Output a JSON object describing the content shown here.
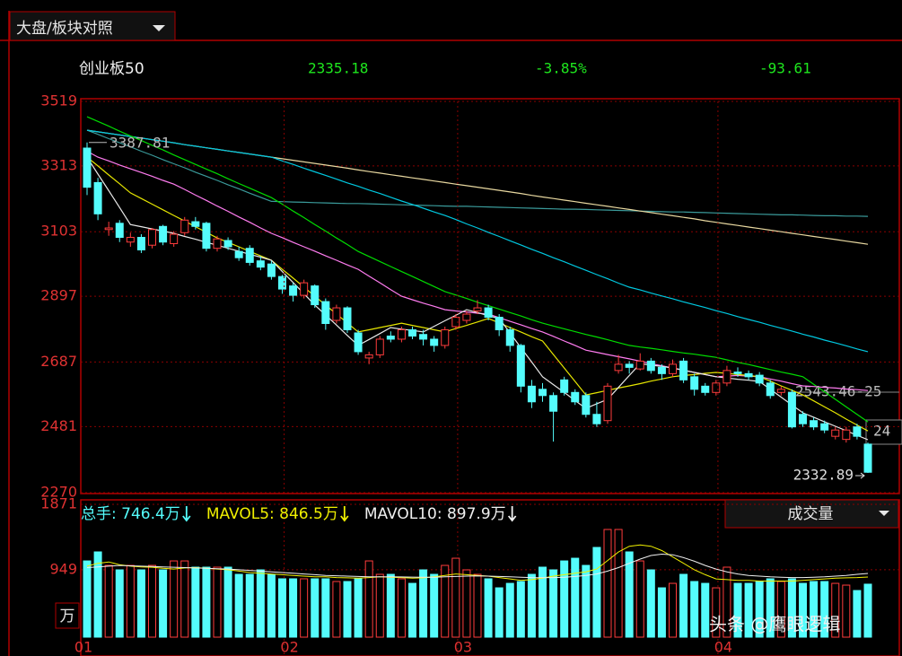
{
  "ui": {
    "selector": "大盘/板块对照",
    "index_name": "创业板50",
    "price": "2335.18",
    "change_pct": "-3.85%",
    "change": "-93.61",
    "watermark": "头条 @鹰眼逻辑"
  },
  "chart_data": [
    {
      "type": "candlestick",
      "ylim": [
        2270,
        3519
      ],
      "yticks": [
        3519,
        3313,
        3103,
        2897,
        2687,
        2481,
        2270
      ],
      "grid": true,
      "up_color": "#ff3c3c",
      "down_color": "#54fcfc",
      "open": [
        3370,
        3260,
        3110,
        3130,
        3070,
        3085,
        3060,
        3120,
        3065,
        3100,
        3135,
        3130,
        3050,
        3075,
        3040,
        3050,
        3010,
        3000,
        2960,
        2930,
        2900,
        2930,
        2880,
        2820,
        2860,
        2780,
        2700,
        2710,
        2770,
        2760,
        2790,
        2775,
        2760,
        2740,
        2800,
        2820,
        2850,
        2860,
        2830,
        2790,
        2740,
        2610,
        2600,
        2580,
        2630,
        2590,
        2580,
        2520,
        2500,
        2660,
        2680,
        2665,
        2690,
        2670,
        2650,
        2690,
        2640,
        2610,
        2590,
        2620,
        2655,
        2650,
        2645,
        2620,
        2590,
        2590,
        2520,
        2500,
        2490,
        2450,
        2440,
        2480,
        2425
      ],
      "high": [
        3387.81,
        3275,
        3135,
        3140,
        3100,
        3095,
        3115,
        3125,
        3105,
        3150,
        3150,
        3135,
        3090,
        3085,
        3055,
        3060,
        3025,
        3010,
        2965,
        2940,
        2950,
        2935,
        2890,
        2870,
        2865,
        2790,
        2720,
        2770,
        2785,
        2800,
        2800,
        2790,
        2770,
        2800,
        2840,
        2850,
        2885,
        2870,
        2840,
        2800,
        2745,
        2630,
        2620,
        2590,
        2640,
        2600,
        2590,
        2560,
        2620,
        2710,
        2690,
        2715,
        2700,
        2680,
        2695,
        2700,
        2650,
        2620,
        2630,
        2675,
        2670,
        2660,
        2655,
        2630,
        2610,
        2600,
        2530,
        2510,
        2500,
        2480,
        2480,
        2490,
        2430
      ],
      "low": [
        3220,
        3140,
        3090,
        3070,
        3055,
        3035,
        3050,
        3060,
        3055,
        3090,
        3110,
        3040,
        3040,
        3045,
        3010,
        2995,
        2980,
        2950,
        2905,
        2880,
        2890,
        2860,
        2790,
        2810,
        2780,
        2710,
        2680,
        2700,
        2750,
        2750,
        2760,
        2740,
        2720,
        2730,
        2790,
        2810,
        2840,
        2820,
        2770,
        2720,
        2590,
        2540,
        2560,
        2433,
        2580,
        2550,
        2510,
        2480,
        2490,
        2650,
        2650,
        2660,
        2650,
        2630,
        2640,
        2620,
        2580,
        2580,
        2580,
        2610,
        2640,
        2630,
        2610,
        2570,
        2580,
        2475,
        2480,
        2470,
        2460,
        2440,
        2430,
        2440,
        2332.89
      ],
      "close": [
        3245,
        3160,
        3115,
        3085,
        3085,
        3045,
        3110,
        3070,
        3095,
        3140,
        3120,
        3050,
        3080,
        3055,
        3020,
        3005,
        2990,
        2960,
        2920,
        2900,
        2940,
        2870,
        2810,
        2860,
        2790,
        2720,
        2710,
        2760,
        2760,
        2790,
        2770,
        2760,
        2740,
        2790,
        2830,
        2840,
        2860,
        2830,
        2790,
        2740,
        2610,
        2560,
        2580,
        2530,
        2590,
        2560,
        2520,
        2490,
        2610,
        2680,
        2670,
        2690,
        2660,
        2650,
        2680,
        2630,
        2600,
        2590,
        2620,
        2660,
        2650,
        2640,
        2620,
        2580,
        2600,
        2480,
        2490,
        2480,
        2470,
        2470,
        2470,
        2450,
        2335.18
      ],
      "lines": [
        {
          "color": "#3a9a9a",
          "values": [
            3427,
            3414,
            3400,
            3387,
            3374,
            3360,
            3347,
            3333,
            3320,
            3307,
            3293,
            3280,
            3267,
            3253,
            3240,
            3226,
            3213,
            3200,
            3199,
            3198,
            3197,
            3196,
            3195,
            3194,
            3193,
            3193,
            3192,
            3191,
            3190,
            3189,
            3188,
            3187,
            3186,
            3185,
            3184,
            3184,
            3183,
            3182,
            3181,
            3180,
            3179,
            3178,
            3177,
            3176,
            3175,
            3175,
            3174,
            3173,
            3172,
            3171,
            3170,
            3169,
            3168,
            3167,
            3166,
            3166,
            3165,
            3164,
            3163,
            3162,
            3161,
            3160,
            3159,
            3158,
            3157,
            3157,
            3156,
            3155,
            3154,
            3154,
            3153,
            3153,
            3152
          ]
        },
        {
          "color": "#e8d8a0",
          "values": [
            3427,
            3422,
            3417,
            3412,
            3407,
            3402,
            3397,
            3392,
            3387,
            3381,
            3376,
            3371,
            3366,
            3361,
            3356,
            3351,
            3346,
            3341,
            3336,
            3331,
            3326,
            3321,
            3316,
            3311,
            3306,
            3300,
            3295,
            3290,
            3285,
            3280,
            3275,
            3270,
            3265,
            3260,
            3255,
            3250,
            3245,
            3240,
            3235,
            3230,
            3225,
            3219,
            3214,
            3209,
            3204,
            3199,
            3194,
            3189,
            3184,
            3179,
            3174,
            3169,
            3164,
            3159,
            3154,
            3149,
            3144,
            3138,
            3133,
            3128,
            3123,
            3118,
            3113,
            3108,
            3103,
            3098,
            3093,
            3088,
            3083,
            3078,
            3073,
            3068,
            3063
          ]
        },
        {
          "color": "#00c8e0",
          "values": [
            3427,
            3422,
            3417,
            3412,
            3407,
            3402,
            3397,
            3392,
            3387,
            3381,
            3376,
            3371,
            3366,
            3361,
            3356,
            3351,
            3346,
            3341,
            3329,
            3318,
            3306,
            3294,
            3283,
            3271,
            3259,
            3248,
            3236,
            3225,
            3213,
            3201,
            3190,
            3178,
            3166,
            3155,
            3142,
            3128,
            3115,
            3101,
            3088,
            3074,
            3061,
            3047,
            3034,
            3020,
            3007,
            2993,
            2980,
            2966,
            2953,
            2939,
            2926,
            2917,
            2907,
            2898,
            2889,
            2879,
            2870,
            2861,
            2851,
            2842,
            2832,
            2823,
            2814,
            2804,
            2795,
            2786,
            2776,
            2767,
            2757,
            2748,
            2739,
            2729,
            2720
          ]
        },
        {
          "color": "#00dc00",
          "values": [
            3470,
            3455,
            3440,
            3424,
            3409,
            3394,
            3379,
            3364,
            3348,
            3333,
            3318,
            3303,
            3288,
            3272,
            3257,
            3242,
            3227,
            3212,
            3191,
            3169,
            3148,
            3126,
            3105,
            3083,
            3062,
            3040,
            3024,
            3008,
            2992,
            2976,
            2960,
            2944,
            2928,
            2912,
            2901,
            2890,
            2878,
            2867,
            2856,
            2845,
            2834,
            2822,
            2811,
            2802,
            2793,
            2784,
            2775,
            2767,
            2758,
            2749,
            2740,
            2735,
            2731,
            2726,
            2721,
            2716,
            2712,
            2707,
            2702,
            2694,
            2686,
            2679,
            2671,
            2663,
            2655,
            2648,
            2640,
            2616,
            2592,
            2568,
            2544,
            2520,
            2496
          ]
        },
        {
          "color": "#ff7cf0",
          "values": [
            3360,
            3341,
            3329,
            3316,
            3304,
            3292,
            3280,
            3267,
            3255,
            3238,
            3220,
            3203,
            3185,
            3168,
            3150,
            3133,
            3115,
            3098,
            3084,
            3069,
            3055,
            3041,
            3026,
            3012,
            2997,
            2983,
            2961,
            2940,
            2918,
            2897,
            2886,
            2875,
            2865,
            2854,
            2850,
            2847,
            2843,
            2840,
            2829,
            2817,
            2806,
            2794,
            2783,
            2769,
            2754,
            2740,
            2725,
            2718,
            2711,
            2704,
            2697,
            2690,
            2682,
            2675,
            2668,
            2661,
            2654,
            2647,
            2640,
            2642,
            2644,
            2642,
            2640,
            2633,
            2626,
            2618,
            2611,
            2609,
            2606,
            2604,
            2601,
            2599,
            2596
          ]
        },
        {
          "color": "#e6e600",
          "values": [
            3341,
            3313,
            3284,
            3256,
            3227,
            3209,
            3191,
            3173,
            3155,
            3137,
            3119,
            3101,
            3083,
            3069,
            3055,
            3040,
            3026,
            3012,
            2983,
            2955,
            2926,
            2897,
            2869,
            2840,
            2812,
            2783,
            2790,
            2797,
            2804,
            2811,
            2804,
            2797,
            2790,
            2783,
            2794,
            2804,
            2815,
            2826,
            2812,
            2797,
            2783,
            2768,
            2754,
            2711,
            2668,
            2625,
            2582,
            2589,
            2597,
            2604,
            2611,
            2618,
            2626,
            2633,
            2640,
            2644,
            2647,
            2651,
            2654,
            2651,
            2647,
            2644,
            2640,
            2626,
            2611,
            2597,
            2582,
            2563,
            2544,
            2525,
            2505,
            2486,
            2467
          ]
        },
        {
          "color": "#e8e8e8",
          "values": [
            3341,
            3287,
            3234,
            3180,
            3126,
            3119,
            3112,
            3105,
            3098,
            3088,
            3079,
            3069,
            3060,
            3050,
            3041,
            3031,
            3022,
            3012,
            2976,
            2941,
            2905,
            2869,
            2837,
            2805,
            2772,
            2740,
            2759,
            2778,
            2797,
            2792,
            2788,
            2783,
            2801,
            2819,
            2836,
            2854,
            2845,
            2835,
            2826,
            2780,
            2733,
            2687,
            2640,
            2615,
            2590,
            2564,
            2539,
            2554,
            2568,
            2606,
            2644,
            2682,
            2677,
            2673,
            2668,
            2661,
            2654,
            2647,
            2640,
            2636,
            2632,
            2629,
            2625,
            2600,
            2575,
            2550,
            2525,
            2511,
            2496,
            2482,
            2468,
            2453,
            2439
          ]
        }
      ],
      "annotations": [
        "3387.81",
        "2332.89",
        "2543.46-25",
        "24"
      ]
    },
    {
      "type": "bar",
      "ylim": [
        0,
        1871
      ],
      "yticks": [
        949,
        1871
      ],
      "unit": "万",
      "selector": "成交量",
      "legend": [
        "总手: 746.4万",
        "MAVOL5: 846.5万",
        "MAVOL10: 897.9万"
      ],
      "categories": [
        "01",
        null,
        null,
        null,
        null,
        null,
        null,
        null,
        null,
        null,
        null,
        null,
        null,
        null,
        null,
        null,
        null,
        null,
        null,
        "02",
        null,
        null,
        null,
        null,
        null,
        null,
        null,
        null,
        null,
        null,
        null,
        null,
        null,
        null,
        null,
        "03",
        null,
        null,
        null,
        null,
        null,
        null,
        null,
        null,
        null,
        null,
        null,
        null,
        null,
        null,
        null,
        null,
        null,
        null,
        null,
        null,
        null,
        null,
        null,
        "04",
        null,
        null,
        null,
        null,
        null,
        null,
        null,
        null,
        null,
        null,
        null,
        null,
        null
      ],
      "values": [
        1074,
        1201,
        1011,
        948,
        1011,
        948,
        1011,
        948,
        1074,
        1074,
        986,
        986,
        986,
        986,
        885,
        885,
        948,
        885,
        822,
        822,
        822,
        822,
        822,
        784,
        784,
        822,
        1074,
        885,
        885,
        822,
        758,
        948,
        885,
        1011,
        1112,
        948,
        885,
        822,
        695,
        758,
        784,
        885,
        986,
        948,
        1074,
        1112,
        1011,
        1264,
        1517,
        1517,
        1201,
        1074,
        948,
        695,
        758,
        885,
        784,
        758,
        695,
        986,
        758,
        758,
        784,
        822,
        784,
        822,
        758,
        784,
        784,
        758,
        733,
        657,
        746.4
      ],
      "lines": [
        {
          "color": "#f0f000",
          "values": [
            1000,
            1040,
            1060,
            1020,
            1000,
            990,
            985,
            970,
            960,
            975,
            980,
            970,
            960,
            950,
            930,
            910,
            900,
            890,
            880,
            870,
            860,
            850,
            850,
            840,
            835,
            830,
            840,
            850,
            845,
            840,
            830,
            835,
            850,
            870,
            890,
            880,
            870,
            860,
            840,
            820,
            800,
            810,
            830,
            860,
            880,
            900,
            920,
            960,
            1080,
            1200,
            1280,
            1300,
            1280,
            1220,
            1130,
            1040,
            950,
            880,
            820,
            810,
            800,
            800,
            790,
            790,
            790,
            790,
            800,
            810,
            820,
            830,
            835,
            840,
            846.5
          ]
        },
        {
          "color": "#f0f0f0",
          "values": [
            980,
            990,
            1000,
            1010,
            1005,
            1000,
            995,
            990,
            985,
            980,
            975,
            970,
            965,
            960,
            950,
            940,
            930,
            920,
            910,
            900,
            890,
            880,
            870,
            865,
            860,
            855,
            850,
            850,
            850,
            848,
            846,
            845,
            845,
            850,
            855,
            860,
            862,
            860,
            855,
            850,
            845,
            840,
            838,
            840,
            845,
            855,
            870,
            890,
            930,
            980,
            1040,
            1100,
            1150,
            1170,
            1160,
            1120,
            1070,
            1010,
            960,
            920,
            890,
            870,
            860,
            850,
            845,
            840,
            840,
            845,
            850,
            860,
            870,
            885,
            897.9
          ]
        }
      ]
    }
  ]
}
